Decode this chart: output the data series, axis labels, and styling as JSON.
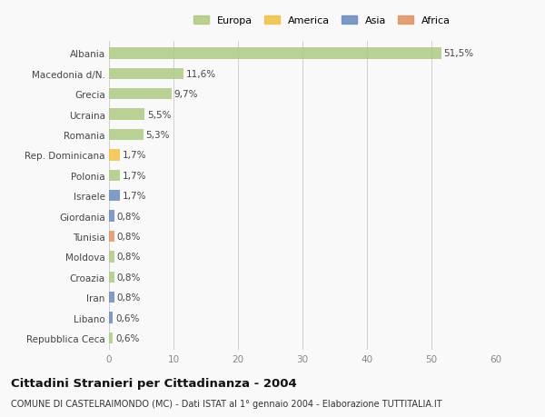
{
  "categories": [
    "Albania",
    "Macedonia d/N.",
    "Grecia",
    "Ucraina",
    "Romania",
    "Rep. Dominicana",
    "Polonia",
    "Israele",
    "Giordania",
    "Tunisia",
    "Moldova",
    "Croazia",
    "Iran",
    "Libano",
    "Repubblica Ceca"
  ],
  "values": [
    51.5,
    11.6,
    9.7,
    5.5,
    5.3,
    1.7,
    1.7,
    1.7,
    0.8,
    0.8,
    0.8,
    0.8,
    0.8,
    0.6,
    0.6
  ],
  "labels": [
    "51,5%",
    "11,6%",
    "9,7%",
    "5,5%",
    "5,3%",
    "1,7%",
    "1,7%",
    "1,7%",
    "0,8%",
    "0,8%",
    "0,8%",
    "0,8%",
    "0,8%",
    "0,6%",
    "0,6%"
  ],
  "colors": [
    "#adc97f",
    "#adc97f",
    "#adc97f",
    "#adc97f",
    "#adc97f",
    "#f0c040",
    "#adc97f",
    "#6688bb",
    "#6688bb",
    "#e09060",
    "#adc97f",
    "#adc97f",
    "#6688bb",
    "#6688bb",
    "#adc97f"
  ],
  "legend_labels": [
    "Europa",
    "America",
    "Asia",
    "Africa"
  ],
  "legend_colors": [
    "#adc97f",
    "#f0c040",
    "#6688bb",
    "#e09060"
  ],
  "xlim": [
    0,
    60
  ],
  "xticks": [
    0,
    10,
    20,
    30,
    40,
    50,
    60
  ],
  "title": "Cittadini Stranieri per Cittadinanza - 2004",
  "subtitle": "COMUNE DI CASTELRAIMONDO (MC) - Dati ISTAT al 1° gennaio 2004 - Elaborazione TUTTITALIA.IT",
  "bg_color": "#f9f9f9",
  "bar_height": 0.55,
  "label_fontsize": 7.5,
  "tick_fontsize": 7.5,
  "title_fontsize": 9.5,
  "subtitle_fontsize": 7.0
}
